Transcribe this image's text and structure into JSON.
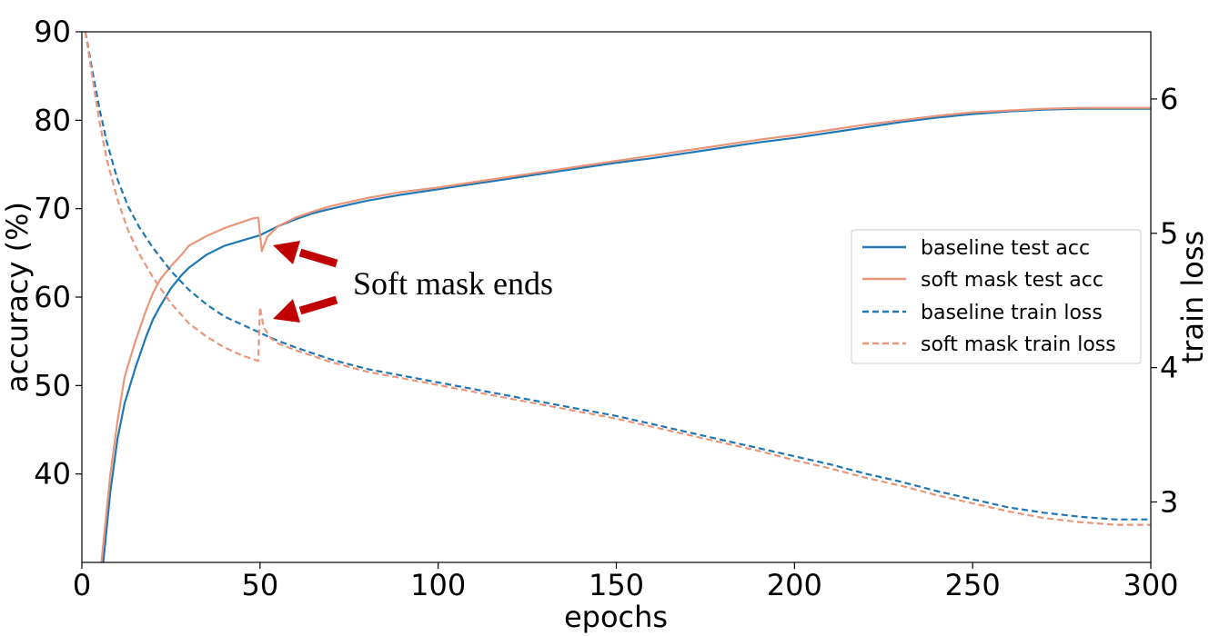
{
  "chart_data": {
    "type": "line",
    "xlabel": "epochs",
    "ylabel_left": "accuracy (%)",
    "ylabel_right": "train loss",
    "xlim": [
      0,
      300
    ],
    "ylim_left": [
      30,
      90
    ],
    "ylim_right": [
      2.55,
      6.5
    ],
    "x_ticks": [
      "0",
      "50",
      "100",
      "150",
      "200",
      "250",
      "300"
    ],
    "y_left_ticks": [
      "40",
      "50",
      "60",
      "70",
      "80",
      "90"
    ],
    "y_right_ticks": [
      "3",
      "4",
      "5",
      "6"
    ],
    "grid": false,
    "legend_placement": "center-right",
    "annotation": "Soft mask ends",
    "annotation_at_epoch": 50,
    "colors": {
      "baseline": "#1f77b4",
      "soft_mask": "#e9967a",
      "arrow": "#c00000"
    },
    "series": [
      {
        "name": "baseline test acc",
        "axis": "left",
        "style": "solid",
        "x": [
          6,
          7,
          8,
          10,
          12,
          15,
          18,
          20,
          22,
          25,
          28,
          30,
          35,
          40,
          45,
          50,
          55,
          60,
          65,
          70,
          80,
          90,
          100,
          110,
          120,
          130,
          140,
          150,
          160,
          170,
          180,
          190,
          200,
          210,
          220,
          230,
          240,
          250,
          260,
          270,
          280,
          290,
          300
        ],
        "y": [
          30,
          34,
          38,
          44,
          48,
          52,
          55.5,
          57.5,
          59,
          61,
          62.5,
          63.3,
          64.8,
          65.8,
          66.4,
          67,
          68,
          68.8,
          69.5,
          70,
          70.9,
          71.6,
          72.2,
          72.8,
          73.4,
          74,
          74.6,
          75.2,
          75.7,
          76.3,
          76.9,
          77.5,
          78,
          78.6,
          79.2,
          79.8,
          80.3,
          80.7,
          81,
          81.2,
          81.3,
          81.3,
          81.3
        ]
      },
      {
        "name": "soft mask test acc",
        "axis": "left",
        "style": "solid",
        "x": [
          5.5,
          7,
          8,
          10,
          12,
          15,
          18,
          20,
          22,
          25,
          28,
          30,
          35,
          40,
          45,
          48,
          49.5,
          50.5,
          52,
          55,
          60,
          65,
          70,
          80,
          90,
          100,
          110,
          120,
          130,
          140,
          150,
          160,
          170,
          180,
          190,
          200,
          210,
          220,
          230,
          240,
          250,
          260,
          270,
          280,
          290,
          300
        ],
        "y": [
          30,
          36,
          40,
          46,
          51,
          55,
          58.5,
          60.5,
          62,
          63.5,
          64.8,
          65.8,
          66.9,
          67.8,
          68.5,
          68.9,
          69,
          65.2,
          66.8,
          68,
          69,
          69.7,
          70.3,
          71.2,
          71.9,
          72.4,
          73,
          73.6,
          74.2,
          74.8,
          75.4,
          76,
          76.6,
          77.2,
          77.8,
          78.3,
          78.9,
          79.5,
          80,
          80.5,
          80.9,
          81.1,
          81.3,
          81.4,
          81.4,
          81.4
        ]
      },
      {
        "name": "baseline train loss",
        "axis": "right",
        "style": "dashed",
        "x": [
          1,
          3,
          5,
          7,
          10,
          13,
          16,
          20,
          25,
          30,
          35,
          40,
          45,
          50,
          55,
          60,
          70,
          80,
          90,
          100,
          110,
          120,
          130,
          140,
          150,
          160,
          170,
          180,
          190,
          200,
          210,
          220,
          230,
          240,
          250,
          260,
          270,
          280,
          290,
          300
        ],
        "y": [
          6.5,
          6.2,
          5.92,
          5.68,
          5.4,
          5.2,
          5.05,
          4.89,
          4.72,
          4.58,
          4.47,
          4.38,
          4.32,
          4.26,
          4.2,
          4.15,
          4.06,
          3.99,
          3.94,
          3.89,
          3.84,
          3.79,
          3.74,
          3.69,
          3.64,
          3.58,
          3.52,
          3.46,
          3.4,
          3.34,
          3.28,
          3.21,
          3.15,
          3.08,
          3.02,
          2.96,
          2.92,
          2.89,
          2.87,
          2.87
        ]
      },
      {
        "name": "soft mask train loss",
        "axis": "right",
        "style": "dashed",
        "x": [
          1,
          3,
          5,
          7,
          10,
          13,
          16,
          20,
          25,
          30,
          35,
          40,
          45,
          49.5,
          50,
          51,
          53,
          55,
          60,
          70,
          80,
          90,
          100,
          110,
          120,
          130,
          140,
          150,
          160,
          170,
          180,
          190,
          200,
          210,
          220,
          230,
          240,
          250,
          260,
          270,
          280,
          290,
          300
        ],
        "y": [
          6.5,
          6.15,
          5.82,
          5.55,
          5.25,
          5.02,
          4.85,
          4.67,
          4.48,
          4.33,
          4.23,
          4.15,
          4.09,
          4.05,
          4.45,
          4.3,
          4.22,
          4.18,
          4.13,
          4.04,
          3.97,
          3.92,
          3.87,
          3.82,
          3.77,
          3.72,
          3.67,
          3.62,
          3.56,
          3.5,
          3.44,
          3.38,
          3.31,
          3.25,
          3.18,
          3.12,
          3.05,
          2.99,
          2.93,
          2.88,
          2.85,
          2.83,
          2.83
        ]
      }
    ]
  }
}
